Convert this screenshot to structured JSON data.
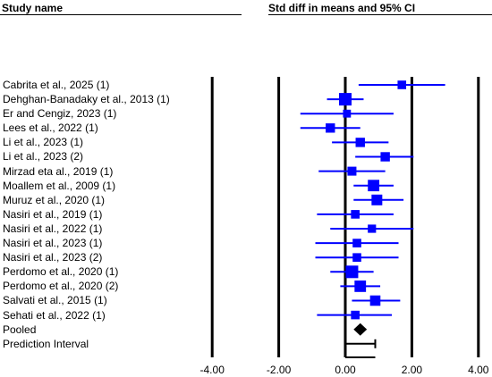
{
  "header": {
    "left": "Study name",
    "right": "Std diff in means and 95% CI"
  },
  "chart_data": {
    "type": "forest",
    "xlim": [
      -4,
      4
    ],
    "xticks": [
      "-4.00",
      "-2.00",
      "0.00",
      "2.00",
      "4.00"
    ],
    "xtick_values": [
      -4,
      -2,
      0,
      2,
      4
    ],
    "colors": {
      "study": "#0000ff",
      "summary": "#000000"
    },
    "studies": [
      {
        "label": "Cabrita et al., 2025 (1)",
        "est": 1.7,
        "lo": 0.4,
        "hi": 3.0,
        "weight": 0.45
      },
      {
        "label": "Dehghan-Banadaky et al., 2013 (1)",
        "est": 0.0,
        "lo": -0.55,
        "hi": 0.55,
        "weight": 1.0
      },
      {
        "label": "Er and Cengiz, 2023 (1)",
        "est": 0.05,
        "lo": -1.35,
        "hi": 1.45,
        "weight": 0.35
      },
      {
        "label": "Lees et al., 2022 (1)",
        "est": -0.45,
        "lo": -1.35,
        "hi": 0.45,
        "weight": 0.55
      },
      {
        "label": "Li et al., 2023 (1)",
        "est": 0.45,
        "lo": -0.4,
        "hi": 1.3,
        "weight": 0.55
      },
      {
        "label": "Li et al., 2023 (2)",
        "est": 1.2,
        "lo": 0.3,
        "hi": 2.05,
        "weight": 0.55
      },
      {
        "label": "Mirzad eta al., 2019 (1)",
        "est": 0.2,
        "lo": -0.8,
        "hi": 1.2,
        "weight": 0.5
      },
      {
        "label": "Moallem et al., 2009 (1)",
        "est": 0.85,
        "lo": 0.25,
        "hi": 1.45,
        "weight": 0.85
      },
      {
        "label": "Muruz et al., 2020 (1)",
        "est": 0.95,
        "lo": 0.25,
        "hi": 1.75,
        "weight": 0.75
      },
      {
        "label": "Nasiri et al., 2019 (1)",
        "est": 0.3,
        "lo": -0.85,
        "hi": 1.45,
        "weight": 0.45
      },
      {
        "label": "Nasiri et al., 2022 (1)",
        "est": 0.8,
        "lo": -0.45,
        "hi": 2.05,
        "weight": 0.4
      },
      {
        "label": "Nasiri et al., 2023 (1)",
        "est": 0.35,
        "lo": -0.9,
        "hi": 1.6,
        "weight": 0.45
      },
      {
        "label": "Nasiri et al., 2023 (2)",
        "est": 0.35,
        "lo": -0.9,
        "hi": 1.6,
        "weight": 0.45
      },
      {
        "label": "Perdomo et al., 2020 (1)",
        "est": 0.2,
        "lo": -0.45,
        "hi": 0.85,
        "weight": 1.0
      },
      {
        "label": "Perdomo et al., 2020 (2)",
        "est": 0.45,
        "lo": -0.15,
        "hi": 1.05,
        "weight": 0.85
      },
      {
        "label": "Salvati et al., 2015 (1)",
        "est": 0.9,
        "lo": 0.2,
        "hi": 1.65,
        "weight": 0.7
      },
      {
        "label": "Sehati et al., 2022 (1)",
        "est": 0.3,
        "lo": -0.85,
        "hi": 1.4,
        "weight": 0.45
      }
    ],
    "pooled": {
      "label": "Pooled",
      "est": 0.45,
      "lo": 0.25,
      "hi": 0.65
    },
    "prediction_interval": {
      "label": "Prediction Interval",
      "lo": 0.0,
      "hi": 0.9
    }
  }
}
